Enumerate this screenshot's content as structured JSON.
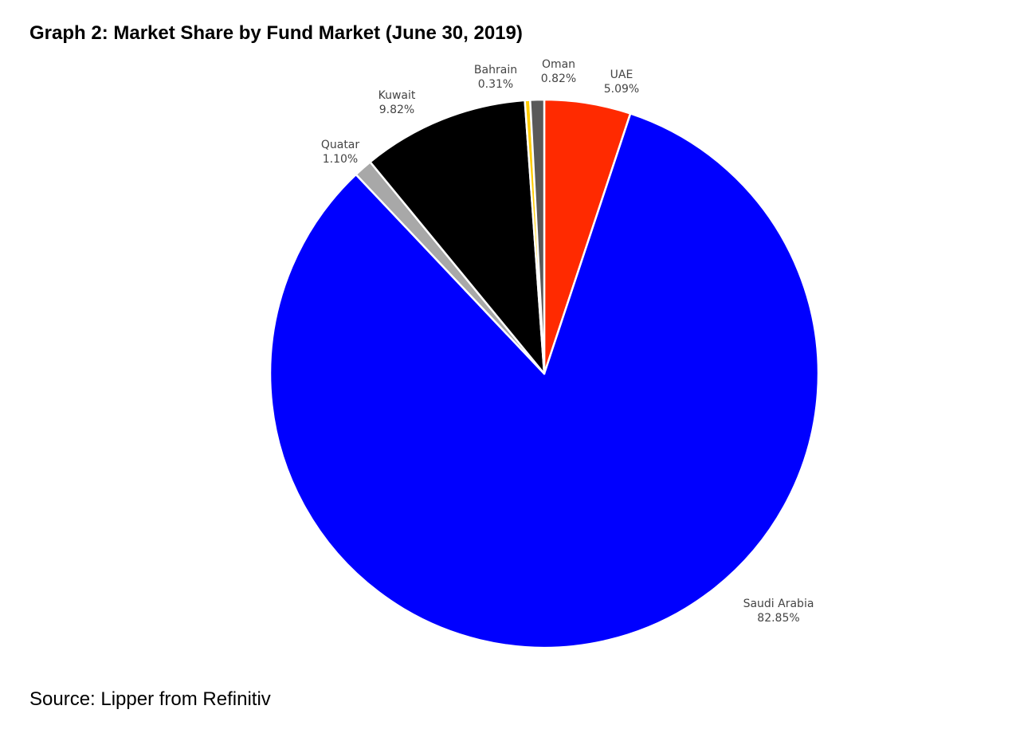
{
  "header": {
    "title": "Graph 2: Market Share by Fund Market (June 30, 2019)"
  },
  "footer": {
    "source": "Source: Lipper from Refinitiv"
  },
  "chart_data": {
    "type": "pie",
    "title": "Graph 2: Market Share by Fund Market (June 30, 2019)",
    "start": "12 o'clock",
    "direction": "clockwise",
    "slices": [
      {
        "label": "UAE",
        "value": 5.09,
        "value_text": "5.09%",
        "color": "#ff2a00"
      },
      {
        "label": "Saudi Arabia",
        "value": 82.85,
        "value_text": "82.85%",
        "color": "#0000ff"
      },
      {
        "label": "Quatar",
        "value": 1.1,
        "value_text": "1.10%",
        "color": "#a8a8a8"
      },
      {
        "label": "Kuwait",
        "value": 9.82,
        "value_text": "9.82%",
        "color": "#000000"
      },
      {
        "label": "Bahrain",
        "value": 0.31,
        "value_text": "0.31%",
        "color": "#ffcc00"
      },
      {
        "label": "Oman",
        "value": 0.82,
        "value_text": "0.82%",
        "color": "#595959"
      }
    ],
    "source": "Source: Lipper from Refinitiv"
  }
}
